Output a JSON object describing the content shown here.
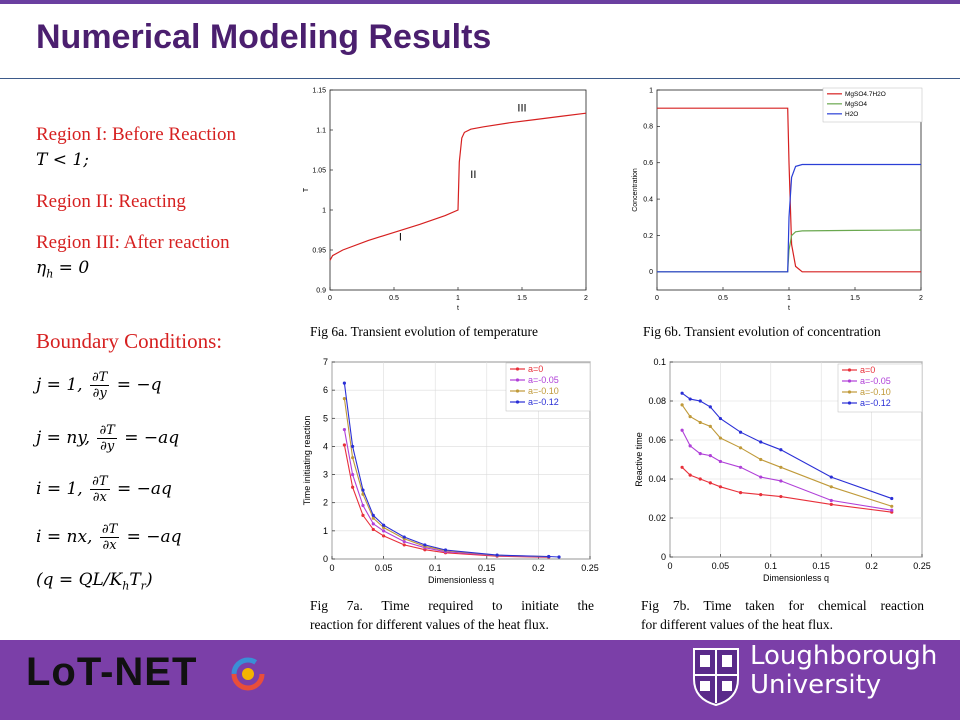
{
  "title": "Numerical Modeling Results",
  "left": {
    "region1": "Region I: Before Reaction",
    "region1_cond": "T < 1;",
    "region2": "Region II: Reacting",
    "region3": "Region III: After reaction",
    "region3_cond_lhs": "η",
    "region3_cond_sub": "h",
    "region3_cond_rhs": " = 0",
    "bc_heading": "Boundary Conditions:",
    "bc": [
      {
        "lhs": "j = 1,",
        "num": "∂T",
        "den": "∂y",
        "rhs": "= −q"
      },
      {
        "lhs": "j = ny,",
        "num": "∂T",
        "den": "∂y",
        "rhs": "= −aq"
      },
      {
        "lhs": "i = 1,",
        "num": "∂T",
        "den": "∂x",
        "rhs": "= −aq"
      },
      {
        "lhs": "i = nx,",
        "num": "∂T",
        "den": "∂x",
        "rhs": "= −aq"
      }
    ],
    "q_def": "(q = QL/K",
    "q_def_sub1": "h",
    "q_def_mid": "T",
    "q_def_sub2": "r",
    "q_def_end": ")"
  },
  "captions": {
    "fig6a": "Fig 6a. Transient evolution of temperature",
    "fig6b": "Fig 6b. Transient evolution of concentration",
    "fig7a_l1": "Fig 7a. Time required to initiate the",
    "fig7a_l2": "reaction for different values of the heat flux.",
    "fig7b_l1": "Fig 7b. Time taken for chemical reaction",
    "fig7b_l2": "for different values of the heat flux."
  },
  "footer": {
    "lotnet": "LoT-NET",
    "lboro_l1": "Loughborough",
    "lboro_l2": "University"
  },
  "colors": {
    "title": "#4b1f6f",
    "region_red": "#d62020",
    "footer_bg": "#7b3fa8"
  },
  "chart_data": [
    {
      "id": "fig6a",
      "type": "line",
      "xlabel": "t",
      "ylabel": "T",
      "xlim": [
        0,
        2
      ],
      "ylim": [
        0.9,
        1.15
      ],
      "xticks": [
        "0",
        "0.5",
        "1",
        "1.5",
        "2"
      ],
      "yticks": [
        "0.9",
        "0.95",
        "1",
        "1.05",
        "1.1",
        "1.15"
      ],
      "annotations": [
        "I",
        "II",
        "III"
      ],
      "series": [
        {
          "color": "#d62020",
          "x": [
            0,
            0.02,
            0.1,
            0.3,
            0.5,
            0.7,
            0.9,
            1.0,
            1.01,
            1.03,
            1.05,
            1.1,
            1.2,
            1.4,
            1.6,
            1.8,
            2.0
          ],
          "y": [
            0.937,
            0.943,
            0.95,
            0.962,
            0.972,
            0.982,
            0.993,
            1.0,
            1.06,
            1.09,
            1.097,
            1.101,
            1.104,
            1.109,
            1.113,
            1.117,
            1.121
          ]
        }
      ]
    },
    {
      "id": "fig6b",
      "type": "line",
      "xlabel": "t",
      "ylabel": "Concentration",
      "xlim": [
        0,
        2
      ],
      "ylim": [
        -0.1,
        1
      ],
      "xticks": [
        "0",
        "0.5",
        "1",
        "1.5",
        "2"
      ],
      "yticks": [
        "0",
        "0.2",
        "0.4",
        "0.6",
        "0.8",
        "1"
      ],
      "legend": "top-right",
      "series": [
        {
          "name": "MgSO4.7H2O",
          "color": "#d62020",
          "x": [
            0,
            0.5,
            0.99,
            1.0,
            1.02,
            1.05,
            1.1,
            1.5,
            2.0
          ],
          "y": [
            0.9,
            0.9,
            0.9,
            0.6,
            0.15,
            0.03,
            0.0,
            0.0,
            0.0
          ]
        },
        {
          "name": "MgSO4",
          "color": "#6aa84f",
          "x": [
            0,
            0.5,
            0.99,
            1.0,
            1.02,
            1.05,
            1.1,
            1.5,
            2.0
          ],
          "y": [
            0.0,
            0.0,
            0.0,
            0.12,
            0.2,
            0.22,
            0.225,
            0.228,
            0.23
          ]
        },
        {
          "name": "H2O",
          "color": "#2a3fd6",
          "x": [
            0,
            0.5,
            0.99,
            1.0,
            1.02,
            1.05,
            1.1,
            1.5,
            2.0
          ],
          "y": [
            0.0,
            0.0,
            0.0,
            0.3,
            0.52,
            0.58,
            0.59,
            0.59,
            0.59
          ]
        }
      ]
    },
    {
      "id": "fig7a",
      "type": "line",
      "xlabel": "Dimensionless q",
      "ylabel": "Time initiating reaction",
      "xlim": [
        0,
        0.25
      ],
      "ylim": [
        0,
        7
      ],
      "xticks": [
        "0",
        "0.05",
        "0.1",
        "0.15",
        "0.2",
        "0.25"
      ],
      "yticks": [
        "0",
        "1",
        "2",
        "3",
        "4",
        "5",
        "6",
        "7"
      ],
      "legend": "top-right",
      "series": [
        {
          "name": "a=0",
          "color": "#e8303a",
          "x": [
            0.012,
            0.02,
            0.03,
            0.04,
            0.05,
            0.07,
            0.09,
            0.11,
            0.16,
            0.21
          ],
          "y": [
            4.05,
            2.55,
            1.55,
            1.05,
            0.82,
            0.5,
            0.33,
            0.22,
            0.1,
            0.06
          ]
        },
        {
          "name": "a=-0.05",
          "color": "#b040d8",
          "x": [
            0.012,
            0.02,
            0.03,
            0.04,
            0.05,
            0.07,
            0.09,
            0.11,
            0.16,
            0.21
          ],
          "y": [
            4.6,
            3.0,
            1.9,
            1.25,
            1.0,
            0.62,
            0.4,
            0.26,
            0.12,
            0.07
          ]
        },
        {
          "name": "a=-0.10",
          "color": "#c09a3a",
          "x": [
            0.012,
            0.02,
            0.03,
            0.04,
            0.05,
            0.07,
            0.09,
            0.11,
            0.16,
            0.21
          ],
          "y": [
            5.7,
            3.6,
            2.3,
            1.45,
            1.12,
            0.72,
            0.45,
            0.3,
            0.13,
            0.08
          ]
        },
        {
          "name": "a=-0.12",
          "color": "#2a2fd6",
          "x": [
            0.012,
            0.02,
            0.03,
            0.04,
            0.05,
            0.07,
            0.09,
            0.11,
            0.16,
            0.21,
            0.22
          ],
          "y": [
            6.25,
            4.0,
            2.45,
            1.55,
            1.2,
            0.78,
            0.5,
            0.32,
            0.14,
            0.09,
            0.07
          ]
        }
      ]
    },
    {
      "id": "fig7b",
      "type": "line",
      "xlabel": "Dimensionless q",
      "ylabel": "Reactive time",
      "xlim": [
        0,
        0.25
      ],
      "ylim": [
        0,
        0.1
      ],
      "xticks": [
        "0",
        "0.05",
        "0.1",
        "0.15",
        "0.2",
        "0.25"
      ],
      "yticks": [
        "0",
        "0.02",
        "0.04",
        "0.06",
        "0.08",
        "0.1"
      ],
      "legend": "top-right",
      "series": [
        {
          "name": "a=0",
          "color": "#e8303a",
          "x": [
            0.012,
            0.02,
            0.03,
            0.04,
            0.05,
            0.07,
            0.09,
            0.11,
            0.16,
            0.22
          ],
          "y": [
            0.046,
            0.042,
            0.04,
            0.038,
            0.036,
            0.033,
            0.032,
            0.031,
            0.027,
            0.023
          ]
        },
        {
          "name": "a=-0.05",
          "color": "#b040d8",
          "x": [
            0.012,
            0.02,
            0.03,
            0.04,
            0.05,
            0.07,
            0.09,
            0.11,
            0.16,
            0.22
          ],
          "y": [
            0.065,
            0.057,
            0.053,
            0.052,
            0.049,
            0.046,
            0.041,
            0.039,
            0.029,
            0.024
          ]
        },
        {
          "name": "a=-0.10",
          "color": "#c09a3a",
          "x": [
            0.012,
            0.02,
            0.03,
            0.04,
            0.05,
            0.07,
            0.09,
            0.11,
            0.16,
            0.22
          ],
          "y": [
            0.078,
            0.072,
            0.069,
            0.067,
            0.061,
            0.056,
            0.05,
            0.046,
            0.036,
            0.026
          ]
        },
        {
          "name": "a=-0.12",
          "color": "#2a2fd6",
          "x": [
            0.012,
            0.02,
            0.03,
            0.04,
            0.05,
            0.07,
            0.09,
            0.11,
            0.16,
            0.22
          ],
          "y": [
            0.084,
            0.081,
            0.08,
            0.077,
            0.071,
            0.064,
            0.059,
            0.055,
            0.041,
            0.03
          ]
        }
      ]
    }
  ]
}
